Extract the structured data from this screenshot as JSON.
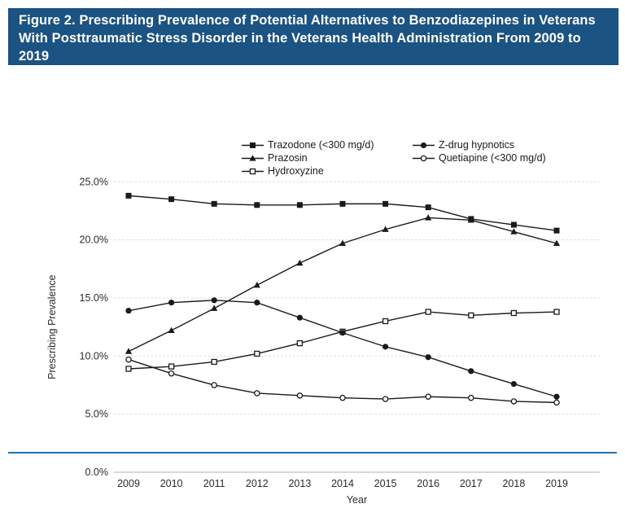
{
  "header": {
    "title": "Figure 2. Prescribing Prevalence of Potential Alternatives to Benzodiazepines in Veterans With Posttraumatic Stress Disorder in the Veterans Health Administration From 2009 to 2019",
    "bg_color": "#1B5382",
    "text_color": "#FFFFFF"
  },
  "chart_data": {
    "type": "line",
    "title": "",
    "xlabel": "Year",
    "ylabel": "Prescribing Prevalence",
    "x": [
      2009,
      2010,
      2011,
      2012,
      2013,
      2014,
      2015,
      2016,
      2017,
      2018,
      2019
    ],
    "ylim": [
      0,
      25
    ],
    "ytick_step": 5,
    "ytick_labels": [
      "0.0%",
      "5.0%",
      "10.0%",
      "15.0%",
      "20.0%",
      "25.0%"
    ],
    "grid": true,
    "legend_position": "top",
    "legend_columns": [
      [
        0,
        1,
        2
      ],
      [
        3,
        4
      ]
    ],
    "series": [
      {
        "name": "Trazodone (<300 mg/d)",
        "marker": "filled-square",
        "values": [
          23.8,
          23.5,
          23.1,
          23.0,
          23.0,
          23.1,
          23.1,
          22.8,
          21.8,
          21.3,
          20.8
        ]
      },
      {
        "name": "Prazosin",
        "marker": "filled-triangle",
        "values": [
          10.4,
          12.2,
          14.1,
          16.1,
          18.0,
          19.7,
          20.9,
          21.9,
          21.7,
          20.7,
          19.7
        ]
      },
      {
        "name": "Hydroxyzine",
        "marker": "open-square",
        "values": [
          8.9,
          9.1,
          9.5,
          10.2,
          11.1,
          12.1,
          13.0,
          13.8,
          13.5,
          13.7,
          13.8
        ]
      },
      {
        "name": "Z-drug hypnotics",
        "marker": "filled-circle",
        "values": [
          13.9,
          14.6,
          14.8,
          14.6,
          13.3,
          12.0,
          10.8,
          9.9,
          8.7,
          7.6,
          6.5
        ]
      },
      {
        "name": "Quetiapine (<300 mg/d)",
        "marker": "open-circle",
        "values": [
          9.7,
          8.5,
          7.5,
          6.8,
          6.6,
          6.4,
          6.3,
          6.5,
          6.4,
          6.1,
          6.0
        ]
      }
    ],
    "colors": {
      "line": "#1A1A1A",
      "grid": "#DBDEE3",
      "axis": "#B3B3B3",
      "tick_text": "#2B2B2B"
    }
  },
  "footer": {
    "border_color": "#2173B3"
  }
}
